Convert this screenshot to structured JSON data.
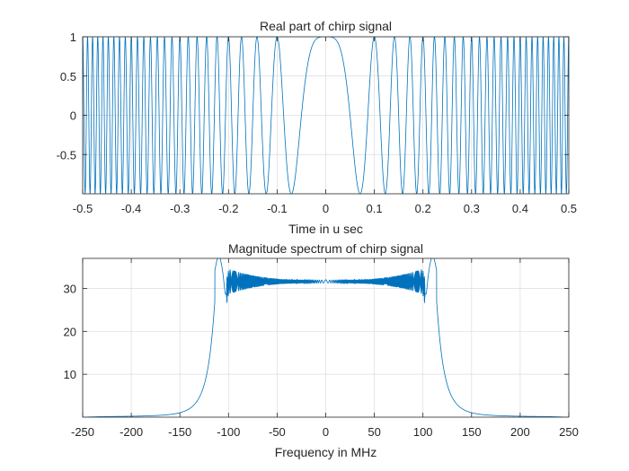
{
  "colors": {
    "line": "#0072BD",
    "grid": "#dcdcdc",
    "axis": "#262626"
  },
  "chart_data": [
    {
      "type": "line",
      "title": "Real part of chirp signal",
      "xlabel": "Time in u sec",
      "ylabel": "",
      "xlim": [
        -0.5,
        0.5
      ],
      "ylim": [
        -1,
        1
      ],
      "xticks": [
        -0.5,
        -0.4,
        -0.3,
        -0.2,
        -0.1,
        0,
        0.1,
        0.2,
        0.3,
        0.4,
        0.5
      ],
      "xtick_labels": [
        "-0.5",
        "-0.4",
        "-0.3",
        "-0.2",
        "-0.1",
        "0",
        "0.1",
        "0.2",
        "0.3",
        "0.4",
        "0.5"
      ],
      "yticks": [
        -0.5,
        0,
        0.5,
        1
      ],
      "ytick_labels": [
        "-0.5",
        "0",
        "0.5",
        "1"
      ],
      "grid": true,
      "series_formula": "y = cos(pi * k * t^2)",
      "chirp_rate_per_us2": 200
    },
    {
      "type": "line",
      "title": "Magnitude spectrum of chirp signal",
      "xlabel": "Frequency in MHz",
      "ylabel": "",
      "xlim": [
        -250,
        250
      ],
      "ylim": [
        0,
        37
      ],
      "xticks": [
        -250,
        -200,
        -150,
        -100,
        -50,
        0,
        50,
        100,
        150,
        200,
        250
      ],
      "xtick_labels": [
        "-250",
        "-200",
        "-150",
        "-100",
        "-50",
        "0",
        "50",
        "100",
        "150",
        "200",
        "250"
      ],
      "yticks": [
        10,
        20,
        30
      ],
      "ytick_labels": [
        "10",
        "20",
        "30"
      ],
      "grid": true,
      "band_edge_mhz": 100,
      "plateau_level": 31.6,
      "peak_level": 37.5
    }
  ]
}
